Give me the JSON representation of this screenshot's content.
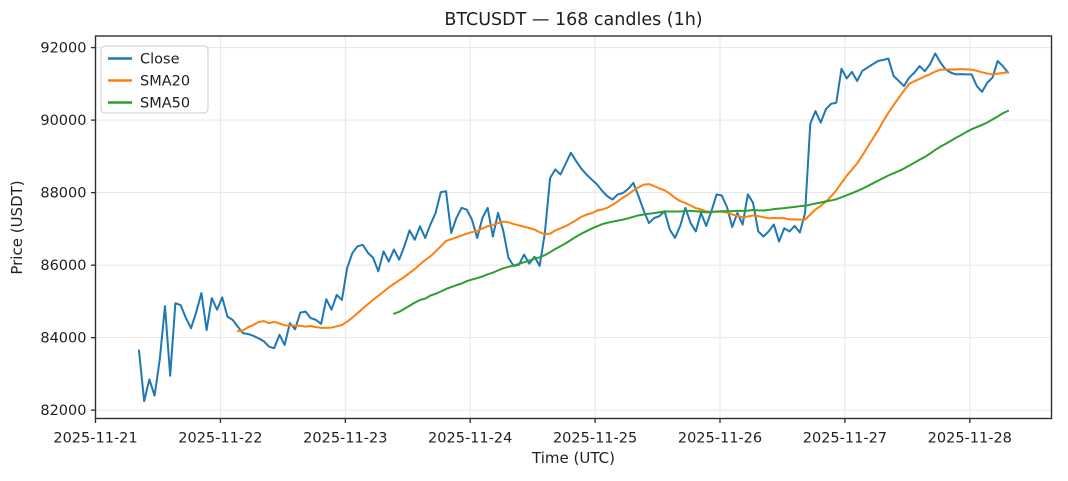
{
  "figure": {
    "title": "BTCUSDT — 168 candles (1h)",
    "xlabel": "Time (UTC)",
    "ylabel": "Price (USDT)"
  },
  "legend": {
    "position": "upper left",
    "items": [
      {
        "label": "Close",
        "color": "#1f77b4"
      },
      {
        "label": "SMA20",
        "color": "#ff7f0e"
      },
      {
        "label": "SMA50",
        "color": "#2ca02c"
      }
    ]
  },
  "colors": {
    "background": "#ffffff",
    "grid": "#e6e6e6",
    "spine": "#2e2e2e",
    "tick": "#1f1f1f",
    "legend_border": "#cccccc"
  },
  "chart_data": {
    "type": "line",
    "title": "BTCUSDT — 168 candles (1h)",
    "xlabel": "Time (UTC)",
    "ylabel": "Price (USDT)",
    "grid": true,
    "legend_position": "upper left",
    "n_points": 168,
    "interval": "1h",
    "x_tick_labels": [
      "2025-11-21",
      "2025-11-22",
      "2025-11-23",
      "2025-11-24",
      "2025-11-25",
      "2025-11-26",
      "2025-11-27",
      "2025-11-28"
    ],
    "x_tick_positions": [
      -8.35,
      15.65,
      39.65,
      63.65,
      87.65,
      111.65,
      135.65,
      159.65
    ],
    "xlim": [
      -8.35,
      175.35
    ],
    "y_ticks": [
      82000,
      84000,
      86000,
      88000,
      90000,
      92000
    ],
    "ylim": [
      81770,
      92320
    ],
    "series": [
      {
        "name": "Close",
        "color": "#1f77b4",
        "values": [
          83650,
          82250,
          82850,
          82400,
          83400,
          84870,
          82950,
          84950,
          84900,
          84550,
          84260,
          84700,
          85230,
          84210,
          85090,
          84770,
          85110,
          84580,
          84490,
          84300,
          84120,
          84100,
          84050,
          83980,
          83900,
          83750,
          83710,
          84080,
          83800,
          84400,
          84230,
          84690,
          84720,
          84540,
          84490,
          84380,
          85060,
          84770,
          85180,
          85040,
          85920,
          86330,
          86520,
          86560,
          86340,
          86200,
          85830,
          86380,
          86100,
          86430,
          86150,
          86520,
          86960,
          86700,
          87070,
          86750,
          87120,
          87440,
          88010,
          88040,
          86890,
          87300,
          87580,
          87530,
          87250,
          86750,
          87300,
          87580,
          86790,
          87440,
          86950,
          86200,
          85980,
          86010,
          86290,
          86040,
          86230,
          85980,
          86890,
          88400,
          88640,
          88500,
          88800,
          89100,
          88870,
          88660,
          88500,
          88360,
          88230,
          88050,
          87900,
          87810,
          87950,
          87990,
          88100,
          88270,
          87900,
          87500,
          87160,
          87300,
          87350,
          87490,
          86980,
          86750,
          87080,
          87580,
          87160,
          86930,
          87440,
          87080,
          87490,
          87950,
          87920,
          87600,
          87050,
          87440,
          87120,
          87950,
          87720,
          86930,
          86790,
          86930,
          87120,
          86650,
          87020,
          86930,
          87080,
          86900,
          87440,
          89900,
          90250,
          89930,
          90300,
          90450,
          90480,
          91420,
          91150,
          91330,
          91080,
          91360,
          91450,
          91540,
          91630,
          91660,
          91700,
          91220,
          91080,
          90940,
          91170,
          91310,
          91490,
          91350,
          91540,
          91840,
          91590,
          91400,
          91310,
          91260,
          91270,
          91260,
          91260,
          90940,
          90780,
          91030,
          91170,
          91630,
          91490,
          91310
        ]
      },
      {
        "name": "SMA20",
        "color": "#ff7f0e",
        "derived": "sma",
        "period": 20,
        "source": "Close"
      },
      {
        "name": "SMA50",
        "color": "#2ca02c",
        "derived": "sma",
        "period": 50,
        "source": "Close"
      }
    ]
  }
}
